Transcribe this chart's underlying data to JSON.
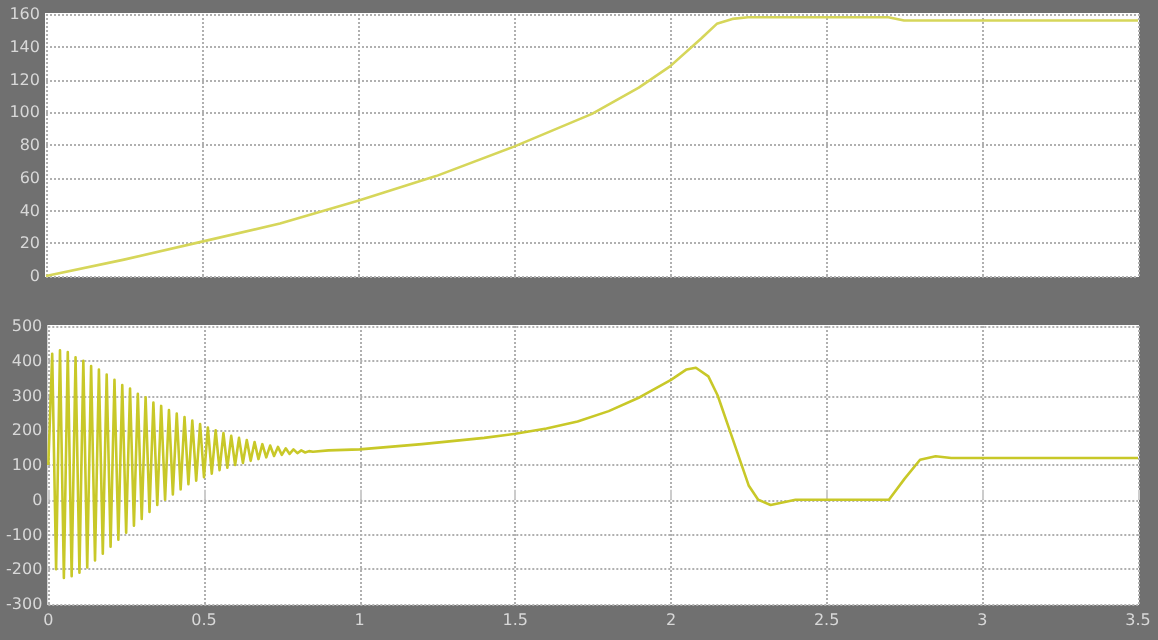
{
  "chart_data": [
    {
      "type": "line",
      "xlim": [
        0,
        3.5
      ],
      "xticks": [
        0,
        0.5,
        1,
        1.5,
        2,
        2.5,
        3,
        3.5
      ],
      "ylim": [
        0,
        160
      ],
      "yticks": [
        0,
        20,
        40,
        60,
        80,
        100,
        120,
        140,
        160
      ],
      "grid": true,
      "tick_labels": "y",
      "series": [
        {
          "color": "#d6d65a",
          "x": [
            0,
            0.25,
            0.5,
            0.75,
            1,
            1.25,
            1.5,
            1.75,
            1.9,
            2,
            2.1,
            2.15,
            2.2,
            2.25,
            2.7,
            2.75,
            3.5
          ],
          "values": [
            0,
            10,
            21,
            32,
            46,
            61,
            79,
            99,
            115,
            128,
            145,
            154,
            157,
            158,
            158,
            156,
            156
          ]
        }
      ]
    },
    {
      "type": "line",
      "xlim": [
        0,
        3.5
      ],
      "xticks": [
        0,
        0.5,
        1,
        1.5,
        2,
        2.5,
        3,
        3.5
      ],
      "ylim": [
        -300,
        500
      ],
      "yticks": [
        -300,
        -200,
        -100,
        0,
        100,
        200,
        300,
        400,
        500
      ],
      "grid": true,
      "series": [
        {
          "color": "#c8c828",
          "x": [
            0,
            0.0125,
            0.025,
            0.0375,
            0.05,
            0.0625,
            0.075,
            0.0875,
            0.1,
            0.1125,
            0.125,
            0.1375,
            0.15,
            0.1625,
            0.175,
            0.1875,
            0.2,
            0.2125,
            0.225,
            0.2375,
            0.25,
            0.2625,
            0.275,
            0.2875,
            0.3,
            0.3125,
            0.325,
            0.3375,
            0.35,
            0.3625,
            0.375,
            0.3875,
            0.4,
            0.4125,
            0.425,
            0.4375,
            0.45,
            0.4625,
            0.475,
            0.4875,
            0.5,
            0.5125,
            0.525,
            0.5375,
            0.55,
            0.5625,
            0.575,
            0.5875,
            0.6,
            0.6125,
            0.625,
            0.6375,
            0.65,
            0.6625,
            0.675,
            0.6875,
            0.7,
            0.7125,
            0.725,
            0.7375,
            0.75,
            0.7625,
            0.775,
            0.7875,
            0.8,
            0.8125,
            0.825,
            0.8375,
            0.85,
            0.9,
            1,
            1.2,
            1.4,
            1.5,
            1.6,
            1.7,
            1.8,
            1.9,
            2,
            2.05,
            2.08,
            2.12,
            2.15,
            2.2,
            2.25,
            2.28,
            2.32,
            2.4,
            2.5,
            2.6,
            2.7,
            2.75,
            2.8,
            2.85,
            2.9,
            3,
            3.5
          ],
          "values": [
            100,
            420,
            -200,
            430,
            -225,
            425,
            -220,
            410,
            -210,
            400,
            -195,
            385,
            -175,
            375,
            -155,
            360,
            -135,
            345,
            -115,
            330,
            -95,
            320,
            -75,
            305,
            -55,
            295,
            -35,
            280,
            -15,
            270,
            0,
            258,
            15,
            248,
            30,
            238,
            45,
            228,
            55,
            218,
            65,
            208,
            75,
            200,
            85,
            192,
            92,
            184,
            100,
            178,
            106,
            172,
            112,
            166,
            117,
            160,
            122,
            156,
            126,
            152,
            129,
            148,
            132,
            145,
            134,
            142,
            136,
            140,
            138,
            142,
            145,
            160,
            178,
            190,
            205,
            225,
            255,
            295,
            345,
            375,
            380,
            355,
            300,
            170,
            40,
            0,
            -15,
            0,
            0,
            0,
            0,
            60,
            115,
            125,
            120,
            120,
            120
          ]
        }
      ]
    }
  ]
}
